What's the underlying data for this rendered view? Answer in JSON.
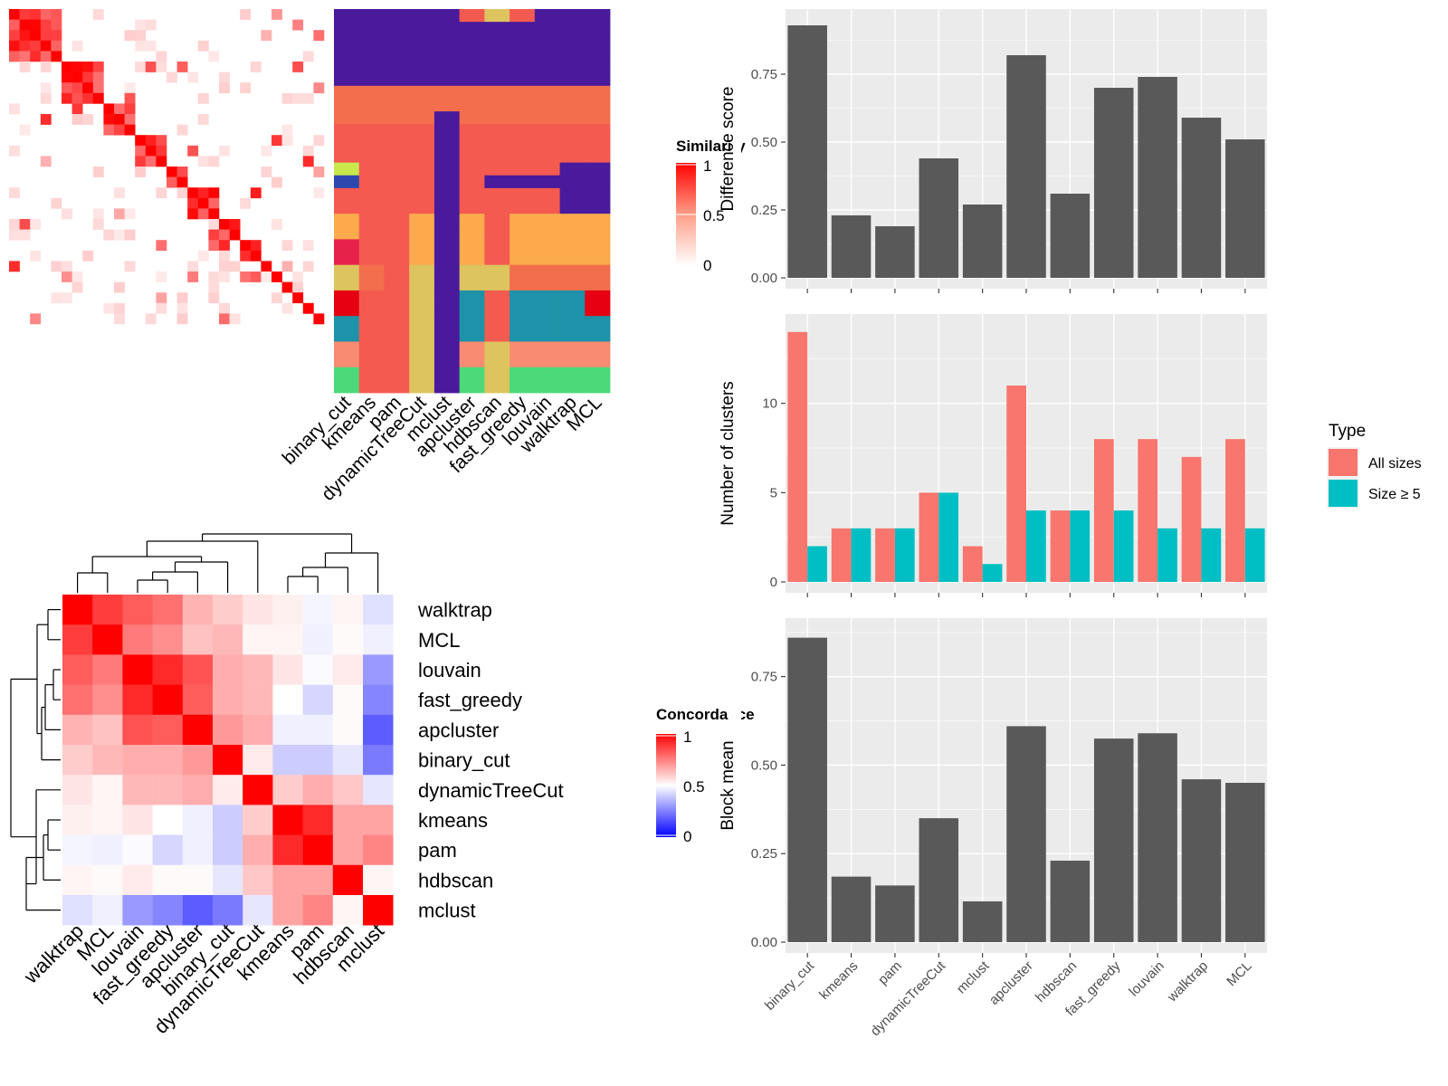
{
  "methods_similarity": [
    "binary_cut",
    "kmeans",
    "pam",
    "dynamicTreeCut",
    "mclust",
    "apcluster",
    "hdbscan",
    "fast_greedy",
    "louvain",
    "walktrap",
    "MCL"
  ],
  "similarity_legend": {
    "title": "Similarity",
    "ticks": [
      "1",
      "0.5",
      "0"
    ]
  },
  "concordance": {
    "order": [
      "walktrap",
      "MCL",
      "louvain",
      "fast_greedy",
      "apcluster",
      "binary_cut",
      "dynamicTreeCut",
      "kmeans",
      "pam",
      "hdbscan",
      "mclust"
    ],
    "legend": {
      "title": "Concordance",
      "ticks": [
        "1",
        "0.5",
        "0"
      ]
    },
    "matrix": [
      [
        1.0,
        0.88,
        0.82,
        0.78,
        0.65,
        0.6,
        0.55,
        0.53,
        0.48,
        0.52,
        0.44
      ],
      [
        0.88,
        1.0,
        0.76,
        0.72,
        0.62,
        0.64,
        0.52,
        0.52,
        0.47,
        0.51,
        0.47
      ],
      [
        0.82,
        0.76,
        1.0,
        0.92,
        0.84,
        0.66,
        0.64,
        0.55,
        0.49,
        0.54,
        0.3
      ],
      [
        0.78,
        0.72,
        0.92,
        1.0,
        0.82,
        0.66,
        0.64,
        0.5,
        0.42,
        0.51,
        0.26
      ],
      [
        0.65,
        0.62,
        0.84,
        0.82,
        1.0,
        0.7,
        0.66,
        0.47,
        0.47,
        0.51,
        0.18
      ],
      [
        0.6,
        0.64,
        0.66,
        0.66,
        0.7,
        1.0,
        0.54,
        0.4,
        0.4,
        0.45,
        0.24
      ],
      [
        0.55,
        0.52,
        0.64,
        0.64,
        0.66,
        0.54,
        1.0,
        0.6,
        0.66,
        0.61,
        0.45
      ],
      [
        0.53,
        0.52,
        0.55,
        0.5,
        0.47,
        0.4,
        0.6,
        1.0,
        0.92,
        0.68,
        0.68
      ],
      [
        0.48,
        0.47,
        0.49,
        0.42,
        0.47,
        0.4,
        0.66,
        0.92,
        1.0,
        0.68,
        0.74
      ],
      [
        0.52,
        0.51,
        0.54,
        0.51,
        0.51,
        0.45,
        0.61,
        0.68,
        0.68,
        1.0,
        0.52
      ],
      [
        0.44,
        0.47,
        0.3,
        0.26,
        0.18,
        0.24,
        0.45,
        0.68,
        0.74,
        0.52,
        1.0
      ]
    ]
  },
  "chart_data": [
    {
      "type": "heatmap",
      "title": "",
      "n_items": 30,
      "legend_title": "Similarity",
      "range": [
        0,
        1
      ]
    },
    {
      "type": "heatmap",
      "title": "",
      "columns": [
        "binary_cut",
        "kmeans",
        "pam",
        "dynamicTreeCut",
        "mclust",
        "apcluster",
        "hdbscan",
        "fast_greedy",
        "louvain",
        "walktrap",
        "MCL"
      ],
      "note_values": "cluster assignment colors per item"
    },
    {
      "type": "heatmap",
      "title": "",
      "rows": [
        "walktrap",
        "MCL",
        "louvain",
        "fast_greedy",
        "apcluster",
        "binary_cut",
        "dynamicTreeCut",
        "kmeans",
        "pam",
        "hdbscan",
        "mclust"
      ],
      "legend_title": "Concordance",
      "range": [
        0,
        1
      ]
    },
    {
      "type": "bar",
      "categories": [
        "binary_cut",
        "kmeans",
        "pam",
        "dynamicTreeCut",
        "mclust",
        "apcluster",
        "hdbscan",
        "fast_greedy",
        "louvain",
        "walktrap",
        "MCL"
      ],
      "values": [
        0.93,
        0.23,
        0.19,
        0.44,
        0.27,
        0.82,
        0.31,
        0.7,
        0.74,
        0.59,
        0.51
      ],
      "ylabel": "Difference score",
      "ylim": [
        0,
        0.97
      ],
      "yticks": [
        "0.00",
        "0.25",
        "0.50",
        "0.75"
      ]
    },
    {
      "type": "bar",
      "categories": [
        "binary_cut",
        "kmeans",
        "pam",
        "dynamicTreeCut",
        "mclust",
        "apcluster",
        "hdbscan",
        "fast_greedy",
        "louvain",
        "walktrap",
        "MCL"
      ],
      "series": [
        {
          "name": "All sizes",
          "values": [
            14,
            3,
            3,
            5,
            2,
            11,
            4,
            8,
            8,
            7,
            8
          ],
          "color": "#F8766D"
        },
        {
          "name": "Size ≥ 5",
          "values": [
            2,
            3,
            3,
            5,
            1,
            4,
            4,
            4,
            3,
            3,
            3
          ],
          "color": "#00BFC4"
        }
      ],
      "ylabel": "Number of clusters",
      "ylim": [
        0,
        14.7
      ],
      "yticks": [
        "0",
        "5",
        "10"
      ],
      "legend_title": "Type",
      "legend_position": "right"
    },
    {
      "type": "bar",
      "categories": [
        "binary_cut",
        "kmeans",
        "pam",
        "dynamicTreeCut",
        "mclust",
        "apcluster",
        "hdbscan",
        "fast_greedy",
        "louvain",
        "walktrap",
        "MCL"
      ],
      "values": [
        0.86,
        0.185,
        0.16,
        0.35,
        0.115,
        0.61,
        0.23,
        0.575,
        0.59,
        0.46,
        0.45
      ],
      "ylabel": "Block mean",
      "ylim": [
        0,
        0.9
      ],
      "yticks": [
        "0.00",
        "0.25",
        "0.50",
        "0.75"
      ]
    }
  ],
  "colors": {
    "panel_bg": "#EBEBEB",
    "bar": "#595959",
    "red": "#FF0000",
    "blue": "#0000FF",
    "grid": "#FFFFFF"
  },
  "cluster_palette": [
    "#4A1A9C",
    "#F26E4C",
    "#F55A50",
    "#FCAA4C",
    "#DDC45E",
    "#1E92A8",
    "#F88B72",
    "#4CD97A",
    "#E6214A",
    "#C8E84C",
    "#2E48B0",
    "#E60012",
    "#F4906C"
  ]
}
